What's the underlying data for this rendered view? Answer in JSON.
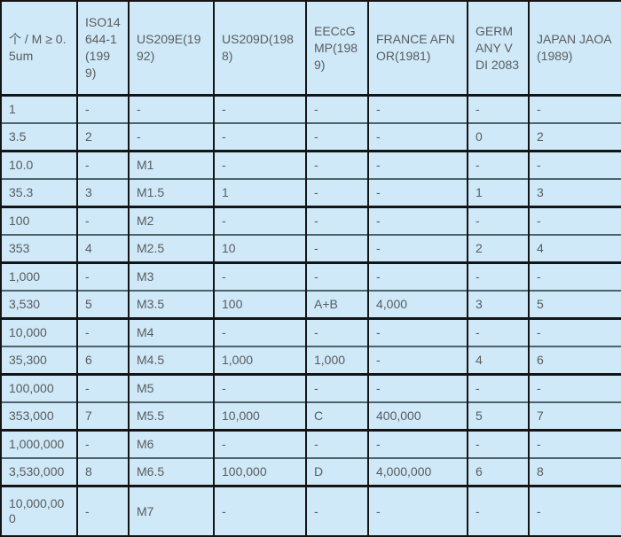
{
  "colors": {
    "cell_bg": "#cfe9f8",
    "text_color": "#595c5e",
    "border_strong": "#141414",
    "border_light": "#4d6367"
  },
  "chart_data": {
    "type": "table",
    "columns": [
      "个 / M ≥ 0.5um",
      "ISO14644-1(1999)",
      "US209E(1992)",
      "US209D(1988)",
      "EECcGMP(1989)",
      "FRANCE AFNOR(1981)",
      "GERMANY VDI 2083",
      "JAPAN JAOA(1989)"
    ],
    "rows": [
      [
        "1",
        "-",
        "-",
        "-",
        "-",
        "-",
        "-",
        "-"
      ],
      [
        "3.5",
        "2",
        "-",
        "-",
        "-",
        "-",
        "0",
        "2"
      ],
      [
        "10.0",
        "-",
        "M1",
        "-",
        "-",
        "-",
        "-",
        "-"
      ],
      [
        "35.3",
        "3",
        "M1.5",
        "1",
        "-",
        "-",
        "1",
        "3"
      ],
      [
        "100",
        "-",
        "M2",
        "-",
        "-",
        "-",
        "-",
        "-"
      ],
      [
        "353",
        "4",
        "M2.5",
        "10",
        "-",
        "-",
        "2",
        "4"
      ],
      [
        "1,000",
        "-",
        "M3",
        "-",
        "-",
        "-",
        "-",
        "-"
      ],
      [
        "3,530",
        "5",
        "M3.5",
        "100",
        "A+B",
        "4,000",
        "3",
        "5"
      ],
      [
        "10,000",
        "-",
        "M4",
        "-",
        "-",
        "-",
        "-",
        "-"
      ],
      [
        "35,300",
        "6",
        "M4.5",
        "1,000",
        "1,000",
        "-",
        "4",
        "6"
      ],
      [
        "100,000",
        "-",
        "M5",
        "-",
        "-",
        "-",
        "-",
        "-"
      ],
      [
        "353,000",
        "7",
        "M5.5",
        "10,000",
        "C",
        "400,000",
        "5",
        "7"
      ],
      [
        "1,000,000",
        "-",
        "M6",
        "-",
        "-",
        "-",
        "-",
        "-"
      ],
      [
        "3,530,000",
        "8",
        "M6.5",
        "100,000",
        "D",
        "4,000,000",
        "6",
        "8"
      ],
      [
        "10,000,000",
        "-",
        "M7",
        "-",
        "-",
        "-",
        "-",
        "-"
      ]
    ]
  }
}
